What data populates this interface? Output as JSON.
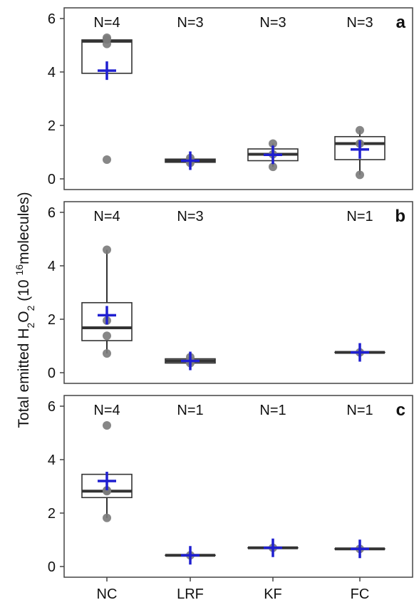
{
  "chart_data": {
    "type": "box",
    "ylabel_parts": {
      "main": "Total emitted H",
      "sub1": "2",
      "mid": "O",
      "sub2": "2",
      "unit_open": " (10 ",
      "sup": "16",
      "unit_close": "molecules)"
    },
    "categories": [
      "NC",
      "LRF",
      "KF",
      "FC"
    ],
    "ylim": [
      -0.4,
      6.4
    ],
    "yticks": [
      0,
      2,
      4,
      6
    ],
    "colors": {
      "mean_marker": "#1f1fd0",
      "points": "#7a7a7a",
      "box": "#333333"
    },
    "panels": [
      {
        "letter": "a",
        "n_labels": [
          "N=4",
          "N=3",
          "N=3",
          "N=3"
        ],
        "boxes": [
          {
            "category": "NC",
            "q1": 3.95,
            "median": 5.15,
            "q3": 5.2,
            "whisker_low": 3.95,
            "whisker_high": 5.2,
            "mean": 4.05,
            "points": [
              5.05,
              5.22,
              5.28,
              0.72
            ]
          },
          {
            "category": "LRF",
            "q1": 0.62,
            "median": 0.68,
            "q3": 0.74,
            "whisker_low": 0.62,
            "whisker_high": 0.74,
            "mean": 0.68,
            "points": [
              0.6,
              0.68,
              0.78
            ]
          },
          {
            "category": "KF",
            "q1": 0.68,
            "median": 0.92,
            "q3": 1.12,
            "whisker_low": 0.45,
            "whisker_high": 1.32,
            "mean": 0.9,
            "points": [
              0.45,
              0.92,
              1.32
            ]
          },
          {
            "category": "FC",
            "q1": 0.72,
            "median": 1.32,
            "q3": 1.58,
            "whisker_low": 0.15,
            "whisker_high": 1.82,
            "mean": 1.1,
            "points": [
              0.15,
              1.32,
              1.82
            ]
          }
        ]
      },
      {
        "letter": "b",
        "n_labels": [
          "N=4",
          "N=3",
          "",
          "N=1"
        ],
        "boxes": [
          {
            "category": "NC",
            "q1": 1.2,
            "median": 1.68,
            "q3": 2.62,
            "whisker_low": 0.72,
            "whisker_high": 4.6,
            "mean": 2.15,
            "points": [
              4.6,
              1.95,
              1.38,
              0.72
            ]
          },
          {
            "category": "LRF",
            "q1": 0.36,
            "median": 0.44,
            "q3": 0.52,
            "whisker_low": 0.36,
            "whisker_high": 0.52,
            "mean": 0.44,
            "points": [
              0.36,
              0.44,
              0.58
            ]
          },
          {
            "category": "FC",
            "q1": 0.76,
            "median": 0.76,
            "q3": 0.76,
            "whisker_low": 0.76,
            "whisker_high": 0.76,
            "mean": 0.76,
            "points": [
              0.76
            ]
          }
        ]
      },
      {
        "letter": "c",
        "n_labels": [
          "N=4",
          "N=1",
          "N=1",
          "N=1"
        ],
        "boxes": [
          {
            "category": "NC",
            "q1": 2.58,
            "median": 2.82,
            "q3": 3.45,
            "whisker_low": 1.82,
            "whisker_high": 3.45,
            "mean": 3.2,
            "points": [
              5.28,
              2.85,
              2.82,
              1.82
            ]
          },
          {
            "category": "LRF",
            "q1": 0.42,
            "median": 0.42,
            "q3": 0.42,
            "whisker_low": 0.42,
            "whisker_high": 0.42,
            "mean": 0.42,
            "points": [
              0.42
            ]
          },
          {
            "category": "KF",
            "q1": 0.7,
            "median": 0.7,
            "q3": 0.7,
            "whisker_low": 0.7,
            "whisker_high": 0.7,
            "mean": 0.7,
            "points": [
              0.7
            ]
          },
          {
            "category": "FC",
            "q1": 0.66,
            "median": 0.66,
            "q3": 0.66,
            "whisker_low": 0.66,
            "whisker_high": 0.66,
            "mean": 0.66,
            "points": [
              0.66
            ]
          }
        ]
      }
    ]
  }
}
